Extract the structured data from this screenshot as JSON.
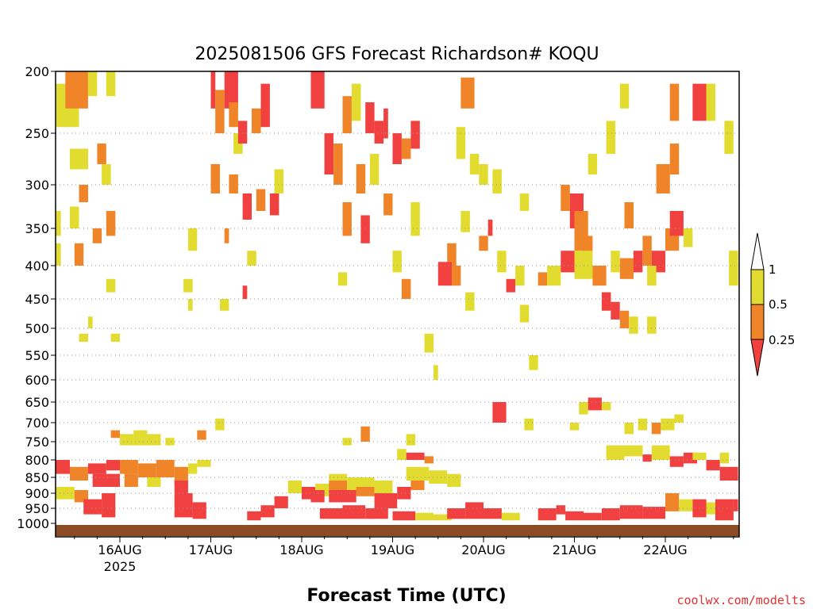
{
  "chart_data": {
    "type": "heatmap",
    "title": "2025081506 GFS Forecast Richardson# KOQU",
    "xlabel": "Forecast Time (UTC)",
    "credit": "coolwx.com/modelts",
    "y_ticks": [
      "200",
      "250",
      "300",
      "350",
      "400",
      "450",
      "500",
      "550",
      "600",
      "650",
      "700",
      "750",
      "800",
      "850",
      "900",
      "950",
      "1000"
    ],
    "x_ticks": [
      {
        "label": "16AUG",
        "sublabel": "2025"
      },
      {
        "label": "17AUG",
        "sublabel": ""
      },
      {
        "label": "18AUG",
        "sublabel": ""
      },
      {
        "label": "19AUG",
        "sublabel": ""
      },
      {
        "label": "20AUG",
        "sublabel": ""
      },
      {
        "label": "21AUG",
        "sublabel": ""
      },
      {
        "label": "22AUG",
        "sublabel": ""
      }
    ],
    "colorbar": {
      "labels": [
        "1",
        "0.5",
        "0.25"
      ],
      "colors": {
        "lt_0_25": "#f04040",
        "0_25_to_0_5": "#f08428",
        "0_5_to_1": "#e2dc30",
        "gt_1": "#ffffff",
        "ground": "#8b4c25"
      }
    },
    "cell_colors": {
      "Y": "#e2dc30",
      "O": "#f08428",
      "R": "#f04040"
    },
    "columns_per_day": 8,
    "first_column_offset_days": -0.75,
    "cells": [
      [
        -0.7,
        -0.45,
        210,
        245,
        "Y"
      ],
      [
        -0.6,
        -0.35,
        200,
        230,
        "O"
      ],
      [
        -0.35,
        -0.25,
        200,
        220,
        "Y"
      ],
      [
        -0.15,
        -0.05,
        200,
        220,
        "Y"
      ],
      [
        -0.55,
        -0.45,
        265,
        285,
        "Y"
      ],
      [
        -0.45,
        -0.35,
        265,
        285,
        "Y"
      ],
      [
        -0.25,
        -0.15,
        260,
        280,
        "O"
      ],
      [
        -0.45,
        -0.35,
        300,
        320,
        "O"
      ],
      [
        -0.2,
        -0.1,
        280,
        300,
        "Y"
      ],
      [
        -0.75,
        -0.65,
        330,
        360,
        "Y"
      ],
      [
        -0.55,
        -0.45,
        325,
        350,
        "Y"
      ],
      [
        -0.3,
        -0.2,
        350,
        370,
        "O"
      ],
      [
        -0.75,
        -0.65,
        370,
        400,
        "Y"
      ],
      [
        -0.5,
        -0.4,
        370,
        400,
        "O"
      ],
      [
        -0.15,
        -0.05,
        330,
        360,
        "O"
      ],
      [
        -0.15,
        -0.05,
        420,
        440,
        "Y"
      ],
      [
        -0.45,
        -0.35,
        510,
        525,
        "Y"
      ],
      [
        -0.1,
        0.0,
        510,
        525,
        "Y"
      ],
      [
        -0.35,
        -0.3,
        480,
        500,
        "Y"
      ],
      [
        0.75,
        0.85,
        350,
        380,
        "Y"
      ],
      [
        0.7,
        0.8,
        420,
        440,
        "Y"
      ],
      [
        0.75,
        0.8,
        450,
        470,
        "Y"
      ],
      [
        1.0,
        1.05,
        200,
        230,
        "R"
      ],
      [
        1.05,
        1.15,
        215,
        250,
        "O"
      ],
      [
        1.15,
        1.3,
        200,
        230,
        "R"
      ],
      [
        1.2,
        1.3,
        225,
        245,
        "O"
      ],
      [
        1.25,
        1.35,
        250,
        270,
        "Y"
      ],
      [
        1.3,
        1.4,
        240,
        260,
        "R"
      ],
      [
        1.45,
        1.55,
        230,
        250,
        "O"
      ],
      [
        1.55,
        1.65,
        210,
        245,
        "R"
      ],
      [
        1.0,
        1.1,
        280,
        310,
        "O"
      ],
      [
        1.2,
        1.3,
        290,
        310,
        "O"
      ],
      [
        1.35,
        1.45,
        310,
        340,
        "R"
      ],
      [
        1.5,
        1.6,
        305,
        330,
        "O"
      ],
      [
        1.65,
        1.75,
        310,
        335,
        "R"
      ],
      [
        1.7,
        1.8,
        285,
        310,
        "Y"
      ],
      [
        1.15,
        1.2,
        350,
        370,
        "O"
      ],
      [
        1.4,
        1.5,
        380,
        400,
        "Y"
      ],
      [
        1.1,
        1.2,
        450,
        470,
        "Y"
      ],
      [
        1.35,
        1.4,
        430,
        450,
        "R"
      ],
      [
        2.1,
        2.25,
        200,
        230,
        "R"
      ],
      [
        2.25,
        2.35,
        250,
        290,
        "R"
      ],
      [
        2.35,
        2.45,
        260,
        300,
        "O"
      ],
      [
        2.45,
        2.55,
        220,
        250,
        "O"
      ],
      [
        2.55,
        2.65,
        210,
        240,
        "Y"
      ],
      [
        2.7,
        2.8,
        225,
        250,
        "R"
      ],
      [
        2.8,
        2.9,
        240,
        260,
        "R"
      ],
      [
        2.9,
        2.95,
        230,
        255,
        "R"
      ],
      [
        2.6,
        2.7,
        280,
        310,
        "O"
      ],
      [
        2.75,
        2.85,
        270,
        300,
        "Y"
      ],
      [
        2.9,
        3.0,
        310,
        335,
        "O"
      ],
      [
        2.45,
        2.55,
        320,
        360,
        "O"
      ],
      [
        2.65,
        2.75,
        335,
        370,
        "R"
      ],
      [
        2.4,
        2.5,
        410,
        430,
        "Y"
      ],
      [
        3.0,
        3.1,
        250,
        280,
        "R"
      ],
      [
        3.1,
        3.2,
        255,
        275,
        "O"
      ],
      [
        3.2,
        3.3,
        240,
        265,
        "R"
      ],
      [
        3.2,
        3.3,
        320,
        360,
        "Y"
      ],
      [
        3.0,
        3.1,
        380,
        410,
        "Y"
      ],
      [
        3.1,
        3.2,
        420,
        450,
        "O"
      ],
      [
        3.35,
        3.45,
        510,
        545,
        "Y"
      ],
      [
        3.45,
        3.5,
        570,
        600,
        "Y"
      ],
      [
        3.75,
        3.9,
        205,
        230,
        "O"
      ],
      [
        3.7,
        3.8,
        245,
        275,
        "Y"
      ],
      [
        3.85,
        3.95,
        270,
        290,
        "Y"
      ],
      [
        3.95,
        4.05,
        280,
        300,
        "Y"
      ],
      [
        4.1,
        4.2,
        285,
        310,
        "Y"
      ],
      [
        4.05,
        4.1,
        340,
        360,
        "R"
      ],
      [
        3.95,
        4.05,
        360,
        380,
        "O"
      ],
      [
        3.75,
        3.85,
        330,
        355,
        "Y"
      ],
      [
        3.6,
        3.7,
        370,
        400,
        "O"
      ],
      [
        4.15,
        4.25,
        380,
        410,
        "Y"
      ],
      [
        4.25,
        4.35,
        420,
        440,
        "R"
      ],
      [
        4.35,
        4.45,
        400,
        430,
        "Y"
      ],
      [
        3.5,
        3.65,
        395,
        430,
        "R"
      ],
      [
        3.65,
        3.75,
        400,
        430,
        "O"
      ],
      [
        3.8,
        3.9,
        440,
        470,
        "Y"
      ],
      [
        4.4,
        4.5,
        310,
        330,
        "Y"
      ],
      [
        4.4,
        4.5,
        460,
        490,
        "Y"
      ],
      [
        4.6,
        4.7,
        410,
        430,
        "O"
      ],
      [
        4.5,
        4.6,
        550,
        580,
        "Y"
      ],
      [
        4.85,
        4.95,
        300,
        330,
        "O"
      ],
      [
        4.95,
        5.1,
        310,
        350,
        "R"
      ],
      [
        5.0,
        5.15,
        330,
        380,
        "O"
      ],
      [
        5.1,
        5.2,
        360,
        390,
        "O"
      ],
      [
        4.7,
        4.85,
        400,
        430,
        "Y"
      ],
      [
        4.85,
        5.0,
        380,
        410,
        "R"
      ],
      [
        5.0,
        5.2,
        380,
        420,
        "Y"
      ],
      [
        5.2,
        5.35,
        400,
        430,
        "O"
      ],
      [
        5.5,
        5.6,
        210,
        230,
        "Y"
      ],
      [
        5.35,
        5.45,
        240,
        270,
        "Y"
      ],
      [
        5.15,
        5.25,
        270,
        290,
        "Y"
      ],
      [
        5.55,
        5.65,
        320,
        350,
        "O"
      ],
      [
        5.4,
        5.5,
        380,
        410,
        "Y"
      ],
      [
        5.5,
        5.65,
        390,
        420,
        "O"
      ],
      [
        5.65,
        5.75,
        380,
        410,
        "R"
      ],
      [
        5.75,
        5.85,
        360,
        400,
        "O"
      ],
      [
        5.85,
        6.0,
        380,
        410,
        "R"
      ],
      [
        6.0,
        6.15,
        350,
        380,
        "O"
      ],
      [
        5.8,
        5.9,
        400,
        430,
        "Y"
      ],
      [
        5.3,
        5.4,
        440,
        470,
        "R"
      ],
      [
        5.4,
        5.5,
        455,
        485,
        "R"
      ],
      [
        5.5,
        5.6,
        470,
        500,
        "O"
      ],
      [
        5.6,
        5.7,
        480,
        510,
        "Y"
      ],
      [
        5.8,
        5.9,
        480,
        510,
        "Y"
      ],
      [
        5.9,
        6.05,
        280,
        310,
        "O"
      ],
      [
        6.05,
        6.2,
        330,
        360,
        "R"
      ],
      [
        6.2,
        6.3,
        350,
        375,
        "Y"
      ],
      [
        6.05,
        6.15,
        210,
        240,
        "O"
      ],
      [
        6.3,
        6.45,
        210,
        240,
        "R"
      ],
      [
        6.45,
        6.55,
        210,
        240,
        "Y"
      ],
      [
        6.65,
        6.75,
        240,
        270,
        "Y"
      ],
      [
        6.05,
        6.15,
        260,
        290,
        "O"
      ],
      [
        6.7,
        6.8,
        380,
        430,
        "Y"
      ],
      [
        4.1,
        4.25,
        650,
        700,
        "R"
      ],
      [
        4.45,
        4.55,
        690,
        720,
        "Y"
      ],
      [
        5.05,
        5.15,
        650,
        680,
        "Y"
      ],
      [
        5.15,
        5.3,
        640,
        670,
        "R"
      ],
      [
        5.3,
        5.4,
        650,
        670,
        "Y"
      ],
      [
        4.95,
        5.05,
        700,
        720,
        "Y"
      ],
      [
        5.55,
        5.65,
        700,
        730,
        "Y"
      ],
      [
        5.7,
        5.8,
        690,
        720,
        "Y"
      ],
      [
        5.85,
        5.95,
        700,
        730,
        "O"
      ],
      [
        5.95,
        6.1,
        690,
        720,
        "Y"
      ],
      [
        6.1,
        6.2,
        680,
        700,
        "Y"
      ],
      [
        -0.1,
        0.0,
        720,
        740,
        "O"
      ],
      [
        0.0,
        0.15,
        730,
        760,
        "Y"
      ],
      [
        0.15,
        0.3,
        720,
        760,
        "Y"
      ],
      [
        0.3,
        0.45,
        730,
        760,
        "Y"
      ],
      [
        0.5,
        0.6,
        740,
        760,
        "Y"
      ],
      [
        0.85,
        0.95,
        720,
        745,
        "O"
      ],
      [
        1.05,
        1.15,
        690,
        720,
        "Y"
      ],
      [
        2.65,
        2.75,
        710,
        750,
        "O"
      ],
      [
        2.45,
        2.55,
        740,
        760,
        "Y"
      ],
      [
        3.15,
        3.25,
        730,
        760,
        "Y"
      ],
      [
        3.05,
        3.15,
        770,
        800,
        "Y"
      ],
      [
        3.15,
        3.35,
        780,
        800,
        "R"
      ],
      [
        3.35,
        3.45,
        790,
        810,
        "O"
      ],
      [
        5.35,
        5.55,
        760,
        800,
        "Y"
      ],
      [
        5.55,
        5.75,
        760,
        790,
        "Y"
      ],
      [
        5.75,
        5.85,
        785,
        805,
        "R"
      ],
      [
        5.85,
        6.05,
        760,
        800,
        "Y"
      ],
      [
        6.05,
        6.2,
        790,
        820,
        "R"
      ],
      [
        6.2,
        6.35,
        780,
        810,
        "R"
      ],
      [
        6.3,
        6.45,
        780,
        800,
        "Y"
      ],
      [
        6.45,
        6.6,
        800,
        830,
        "R"
      ],
      [
        6.6,
        6.8,
        820,
        860,
        "R"
      ],
      [
        6.6,
        6.7,
        780,
        810,
        "Y"
      ],
      [
        -0.75,
        -0.55,
        800,
        840,
        "R"
      ],
      [
        -0.55,
        -0.35,
        820,
        860,
        "O"
      ],
      [
        -0.35,
        -0.15,
        810,
        840,
        "R"
      ],
      [
        -0.15,
        0.0,
        800,
        830,
        "R"
      ],
      [
        0.0,
        0.2,
        800,
        840,
        "O"
      ],
      [
        0.2,
        0.4,
        810,
        850,
        "O"
      ],
      [
        0.4,
        0.6,
        800,
        850,
        "O"
      ],
      [
        0.6,
        0.75,
        820,
        870,
        "O"
      ],
      [
        0.75,
        0.85,
        810,
        840,
        "Y"
      ],
      [
        0.85,
        1.0,
        800,
        820,
        "Y"
      ],
      [
        -0.3,
        0.0,
        840,
        880,
        "R"
      ],
      [
        0.6,
        0.75,
        860,
        900,
        "R"
      ],
      [
        0.3,
        0.45,
        850,
        880,
        "Y"
      ],
      [
        0.05,
        0.2,
        840,
        880,
        "O"
      ],
      [
        -0.7,
        -0.5,
        880,
        920,
        "Y"
      ],
      [
        -0.5,
        -0.35,
        890,
        930,
        "O"
      ],
      [
        -0.4,
        -0.2,
        920,
        970,
        "R"
      ],
      [
        -0.2,
        -0.05,
        900,
        980,
        "R"
      ],
      [
        0.6,
        0.8,
        900,
        980,
        "R"
      ],
      [
        0.8,
        0.95,
        930,
        985,
        "R"
      ],
      [
        1.85,
        2.0,
        860,
        900,
        "Y"
      ],
      [
        2.0,
        2.15,
        880,
        920,
        "R"
      ],
      [
        1.7,
        1.85,
        910,
        950,
        "R"
      ],
      [
        1.55,
        1.7,
        940,
        980,
        "R"
      ],
      [
        1.4,
        1.55,
        960,
        990,
        "R"
      ],
      [
        2.15,
        2.3,
        870,
        910,
        "Y"
      ],
      [
        2.1,
        2.25,
        890,
        930,
        "R"
      ],
      [
        2.3,
        2.5,
        840,
        880,
        "Y"
      ],
      [
        2.3,
        2.5,
        860,
        900,
        "O"
      ],
      [
        2.5,
        2.8,
        850,
        900,
        "Y"
      ],
      [
        2.3,
        2.6,
        890,
        930,
        "R"
      ],
      [
        2.6,
        2.8,
        880,
        910,
        "O"
      ],
      [
        2.8,
        3.0,
        860,
        900,
        "Y"
      ],
      [
        2.8,
        3.05,
        900,
        950,
        "R"
      ],
      [
        3.05,
        3.2,
        880,
        920,
        "R"
      ],
      [
        3.15,
        3.4,
        820,
        860,
        "Y"
      ],
      [
        3.4,
        3.6,
        830,
        870,
        "Y"
      ],
      [
        3.6,
        3.75,
        840,
        880,
        "Y"
      ],
      [
        3.2,
        3.35,
        860,
        890,
        "O"
      ],
      [
        2.2,
        2.45,
        950,
        985,
        "R"
      ],
      [
        2.45,
        2.7,
        940,
        985,
        "R"
      ],
      [
        2.7,
        2.95,
        950,
        985,
        "R"
      ],
      [
        3.0,
        3.25,
        960,
        990,
        "R"
      ],
      [
        3.25,
        3.45,
        965,
        990,
        "Y"
      ],
      [
        3.45,
        3.65,
        970,
        990,
        "Y"
      ],
      [
        3.6,
        3.8,
        950,
        985,
        "R"
      ],
      [
        3.8,
        4.0,
        930,
        985,
        "R"
      ],
      [
        4.0,
        4.2,
        950,
        985,
        "R"
      ],
      [
        4.2,
        4.4,
        965,
        990,
        "Y"
      ],
      [
        4.6,
        4.8,
        950,
        990,
        "R"
      ],
      [
        4.8,
        4.9,
        940,
        970,
        "R"
      ],
      [
        4.9,
        5.1,
        960,
        990,
        "R"
      ],
      [
        5.1,
        5.3,
        965,
        990,
        "R"
      ],
      [
        5.3,
        5.5,
        950,
        990,
        "R"
      ],
      [
        5.5,
        5.75,
        940,
        985,
        "R"
      ],
      [
        5.75,
        6.0,
        945,
        985,
        "R"
      ],
      [
        6.0,
        6.15,
        900,
        960,
        "O"
      ],
      [
        6.15,
        6.3,
        920,
        960,
        "Y"
      ],
      [
        6.3,
        6.45,
        920,
        980,
        "R"
      ],
      [
        6.45,
        6.55,
        930,
        970,
        "Y"
      ],
      [
        6.55,
        6.75,
        920,
        990,
        "R"
      ],
      [
        6.75,
        6.8,
        920,
        960,
        "R"
      ]
    ]
  }
}
